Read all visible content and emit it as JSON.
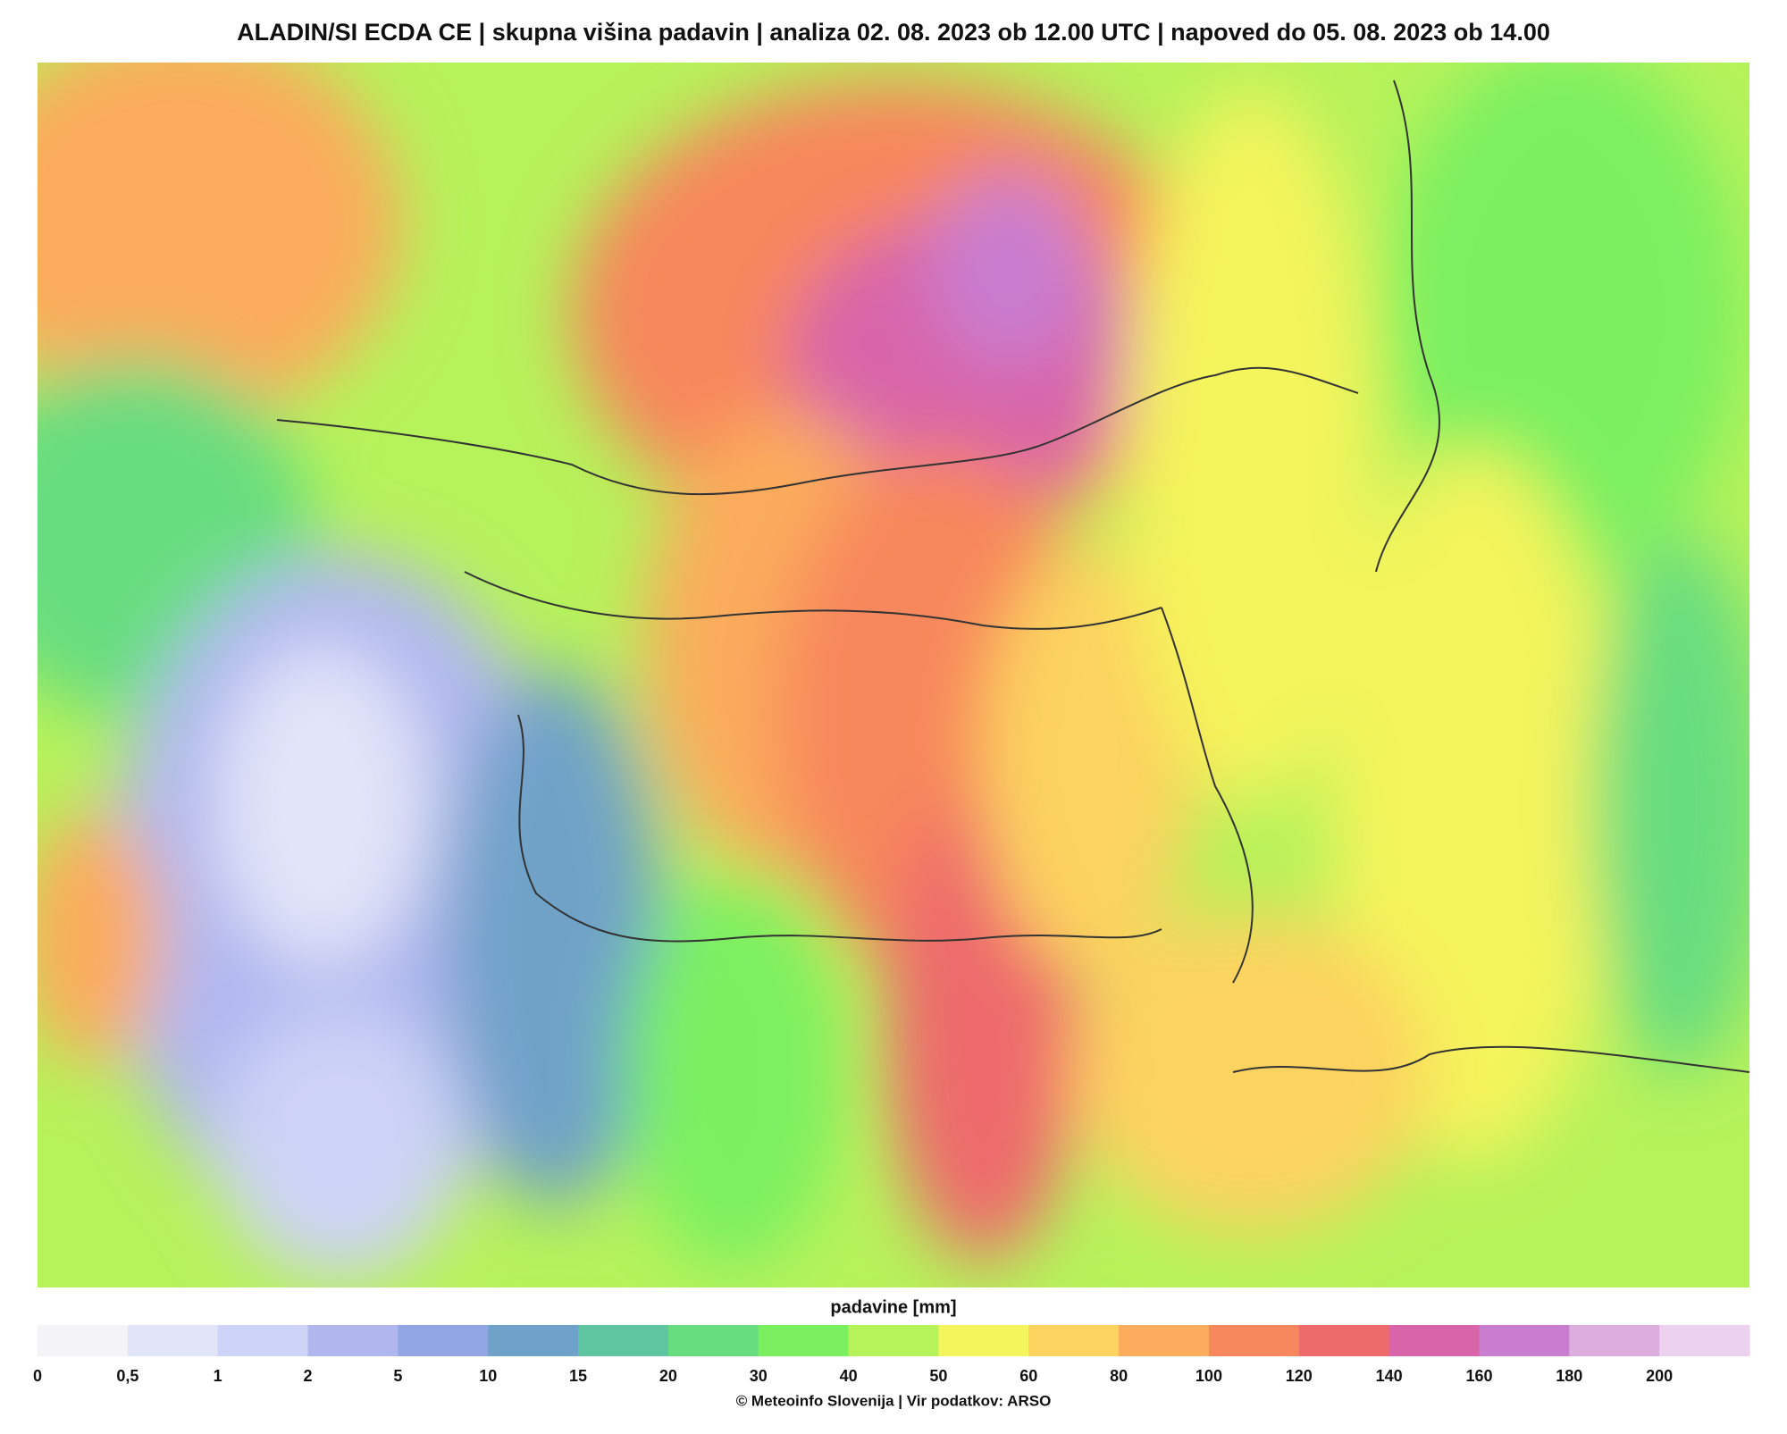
{
  "title": "ALADIN/SI ECDA CE | skupna višina padavin | analiza 02. 08. 2023 ob 12.00 UTC | napoved do 05. 08. 2023 ob 14.00",
  "legend": {
    "title": "padavine [mm]",
    "ticks": [
      "0",
      "0,5",
      "1",
      "2",
      "5",
      "10",
      "15",
      "20",
      "30",
      "40",
      "50",
      "60",
      "80",
      "100",
      "120",
      "140",
      "160",
      "180",
      "200"
    ],
    "colors": [
      "#f4f4f6",
      "#e2e4f8",
      "#cdd3f6",
      "#b0b7ef",
      "#93a6e4",
      "#6fa2c8",
      "#5fc4a0",
      "#67dd7f",
      "#7af060",
      "#b6f25a",
      "#f4f45c",
      "#fcd35e",
      "#fbac5c",
      "#f7875c",
      "#ee6b6c",
      "#d865a9",
      "#c97dcf",
      "#dcaedf",
      "#ecd2ee"
    ]
  },
  "credit": "© Meteoinfo Slovenija | Vir podatkov: ARSO"
}
